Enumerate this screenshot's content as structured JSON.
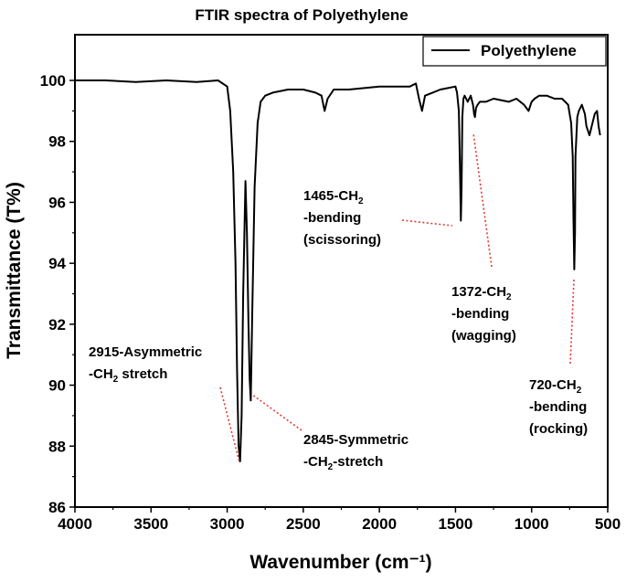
{
  "chart_data": {
    "type": "line",
    "title": "FTIR spectra of Polyethylene",
    "xlabel": "Wavenumber (cm⁻¹)",
    "ylabel": "Transmittance (T%)",
    "xlim": [
      4000,
      500
    ],
    "ylim": [
      86,
      101.5
    ],
    "x_reversed": true,
    "xticks": [
      4000,
      3500,
      3000,
      2500,
      2000,
      1500,
      1000,
      500
    ],
    "yticks": [
      86,
      88,
      90,
      92,
      94,
      96,
      98,
      100
    ],
    "grid": false,
    "legend": {
      "position": "top-right",
      "entries": [
        "Polyethylene"
      ]
    },
    "series": [
      {
        "name": "Polyethylene",
        "color": "#000000",
        "x": [
          4000,
          3800,
          3600,
          3400,
          3200,
          3060,
          3000,
          2980,
          2960,
          2945,
          2935,
          2925,
          2915,
          2905,
          2895,
          2880,
          2870,
          2860,
          2852,
          2845,
          2835,
          2820,
          2800,
          2780,
          2750,
          2700,
          2600,
          2500,
          2420,
          2380,
          2360,
          2340,
          2300,
          2200,
          2000,
          1800,
          1760,
          1740,
          1720,
          1700,
          1650,
          1600,
          1550,
          1500,
          1490,
          1478,
          1470,
          1465,
          1460,
          1455,
          1448,
          1440,
          1420,
          1400,
          1385,
          1378,
          1372,
          1365,
          1355,
          1340,
          1300,
          1250,
          1150,
          1100,
          1050,
          1020,
          1000,
          980,
          950,
          900,
          850,
          800,
          760,
          740,
          730,
          725,
          720,
          715,
          712,
          700,
          690,
          670,
          650,
          640,
          620,
          600,
          585,
          570,
          560,
          550
        ],
        "y": [
          100.0,
          100.0,
          99.95,
          100.0,
          99.95,
          100.0,
          99.8,
          99.0,
          97.0,
          94.0,
          90.5,
          88.0,
          87.5,
          89.0,
          93.0,
          96.7,
          95.0,
          92.0,
          90.2,
          89.5,
          92.5,
          96.5,
          98.6,
          99.3,
          99.5,
          99.6,
          99.7,
          99.7,
          99.6,
          99.5,
          99.0,
          99.4,
          99.7,
          99.7,
          99.8,
          99.8,
          99.9,
          99.4,
          99.0,
          99.5,
          99.6,
          99.7,
          99.75,
          99.8,
          99.6,
          99.0,
          97.0,
          95.4,
          96.5,
          98.8,
          99.4,
          99.5,
          99.3,
          99.5,
          99.2,
          98.9,
          98.8,
          99.1,
          99.2,
          99.3,
          99.3,
          99.4,
          99.3,
          99.4,
          99.2,
          99.0,
          99.3,
          99.4,
          99.5,
          99.5,
          99.4,
          99.4,
          99.2,
          98.6,
          97.5,
          95.5,
          93.8,
          95.0,
          97.5,
          98.8,
          99.0,
          99.2,
          98.9,
          98.5,
          98.2,
          98.6,
          98.9,
          99.0,
          98.5,
          98.2
        ]
      }
    ],
    "annotations": [
      {
        "lines": [
          [
            "1465-CH",
            "2"
          ],
          [
            "-bending"
          ],
          [
            "(scissoring)"
          ]
        ],
        "color": "#e53935",
        "peak": [
          1465,
          95.4
        ]
      },
      {
        "lines": [
          [
            "1372-CH",
            "2"
          ],
          [
            "-bending"
          ],
          [
            "(wagging)"
          ]
        ],
        "color": "#e53935",
        "peak": [
          1372,
          98.8
        ]
      },
      {
        "lines": [
          [
            "720-CH",
            "2"
          ],
          [
            "-bending"
          ],
          [
            "(rocking)"
          ]
        ],
        "color": "#e53935",
        "peak": [
          720,
          93.8
        ]
      },
      {
        "lines": [
          [
            "2915-Asymmetric"
          ],
          [
            "-CH",
            "2",
            " stretch"
          ]
        ],
        "color": "#e53935",
        "peak": [
          2915,
          87.5
        ]
      },
      {
        "lines": [
          [
            "2845-Symmetric"
          ],
          [
            "-CH",
            "2",
            "-stretch"
          ]
        ],
        "color": "#e53935",
        "peak": [
          2845,
          89.5
        ]
      }
    ]
  }
}
